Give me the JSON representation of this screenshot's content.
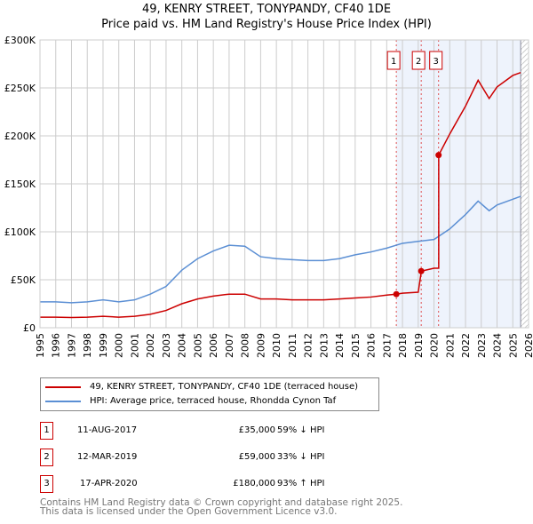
{
  "chart_data": {
    "type": "line",
    "title": "49, KENRY STREET, TONYPANDY, CF40 1DE",
    "subtitle": "Price paid vs. HM Land Registry's House Price Index (HPI)",
    "xlim": [
      1995,
      2026
    ],
    "ylim": [
      0,
      300000
    ],
    "x_ticks": [
      "1995",
      "1996",
      "1997",
      "1998",
      "1999",
      "2000",
      "2001",
      "2002",
      "2003",
      "2004",
      "2005",
      "2006",
      "2007",
      "2008",
      "2009",
      "2010",
      "2011",
      "2012",
      "2013",
      "2014",
      "2015",
      "2016",
      "2017",
      "2018",
      "2019",
      "2020",
      "2021",
      "2022",
      "2023",
      "2024",
      "2025",
      "2026"
    ],
    "y_ticks": [
      "£0",
      "£50K",
      "£100K",
      "£150K",
      "£200K",
      "£250K",
      "£300K"
    ],
    "grid": true,
    "series": [
      {
        "name": "49, KENRY STREET, TONYPANDY, CF40 1DE (terraced house)",
        "color": "#cc0000",
        "x": [
          1995,
          1996,
          1997,
          1998,
          1999,
          2000,
          2001,
          2002,
          2003,
          2004,
          2005,
          2006,
          2007,
          2008,
          2009,
          2010,
          2011,
          2012,
          2013,
          2014,
          2015,
          2016,
          2017,
          2017.6,
          2018,
          2019,
          2019.2,
          2020,
          2020.3,
          2020.3,
          2021,
          2022,
          2022.8,
          2023.5,
          2024,
          2025,
          2025.5
        ],
        "y": [
          11000,
          11000,
          10700,
          11000,
          11900,
          11000,
          11900,
          14000,
          18000,
          25000,
          30000,
          33000,
          35000,
          35000,
          30000,
          30000,
          29000,
          29000,
          29000,
          30000,
          31000,
          32000,
          34000,
          35000,
          36000,
          37000,
          59000,
          62000,
          62000,
          180000,
          202000,
          231000,
          258000,
          239000,
          251000,
          263000,
          266000
        ]
      },
      {
        "name": "HPI: Average price, terraced house, Rhondda Cynon Taf",
        "color": "#5b8fd4",
        "x": [
          1995,
          1996,
          1997,
          1998,
          1999,
          2000,
          2001,
          2002,
          2003,
          2004,
          2005,
          2006,
          2007,
          2008,
          2009,
          2010,
          2011,
          2012,
          2013,
          2014,
          2015,
          2016,
          2017,
          2018,
          2019,
          2020,
          2021,
          2022,
          2022.8,
          2023.5,
          2024,
          2025,
          2025.5
        ],
        "y": [
          27000,
          27000,
          26000,
          27000,
          29000,
          27000,
          29000,
          35000,
          43000,
          60000,
          72000,
          80000,
          86000,
          85000,
          74000,
          72000,
          71000,
          70000,
          70000,
          72000,
          76000,
          79000,
          83000,
          88000,
          90000,
          92000,
          103000,
          118000,
          132000,
          122000,
          128000,
          134000,
          137000
        ]
      }
    ],
    "sales": [
      {
        "n": "1",
        "x": 2017.61,
        "price": 35000
      },
      {
        "n": "2",
        "x": 2019.19,
        "price": 59000
      },
      {
        "n": "3",
        "x": 2020.29,
        "price": 180000
      }
    ]
  },
  "legend": [
    "49, KENRY STREET, TONYPANDY, CF40 1DE (terraced house)",
    "HPI: Average price, terraced house, Rhondda Cynon Taf"
  ],
  "transactions": [
    {
      "n": "1",
      "date": "11-AUG-2017",
      "price": "£35,000",
      "hpi": "59% ↓ HPI"
    },
    {
      "n": "2",
      "date": "12-MAR-2019",
      "price": "£59,000",
      "hpi": "33% ↓ HPI"
    },
    {
      "n": "3",
      "date": "17-APR-2020",
      "price": "£180,000",
      "hpi": "93% ↑ HPI"
    }
  ],
  "footer": [
    "Contains HM Land Registry data © Crown copyright and database right 2025.",
    "This data is licensed under the Open Government Licence v3.0."
  ]
}
